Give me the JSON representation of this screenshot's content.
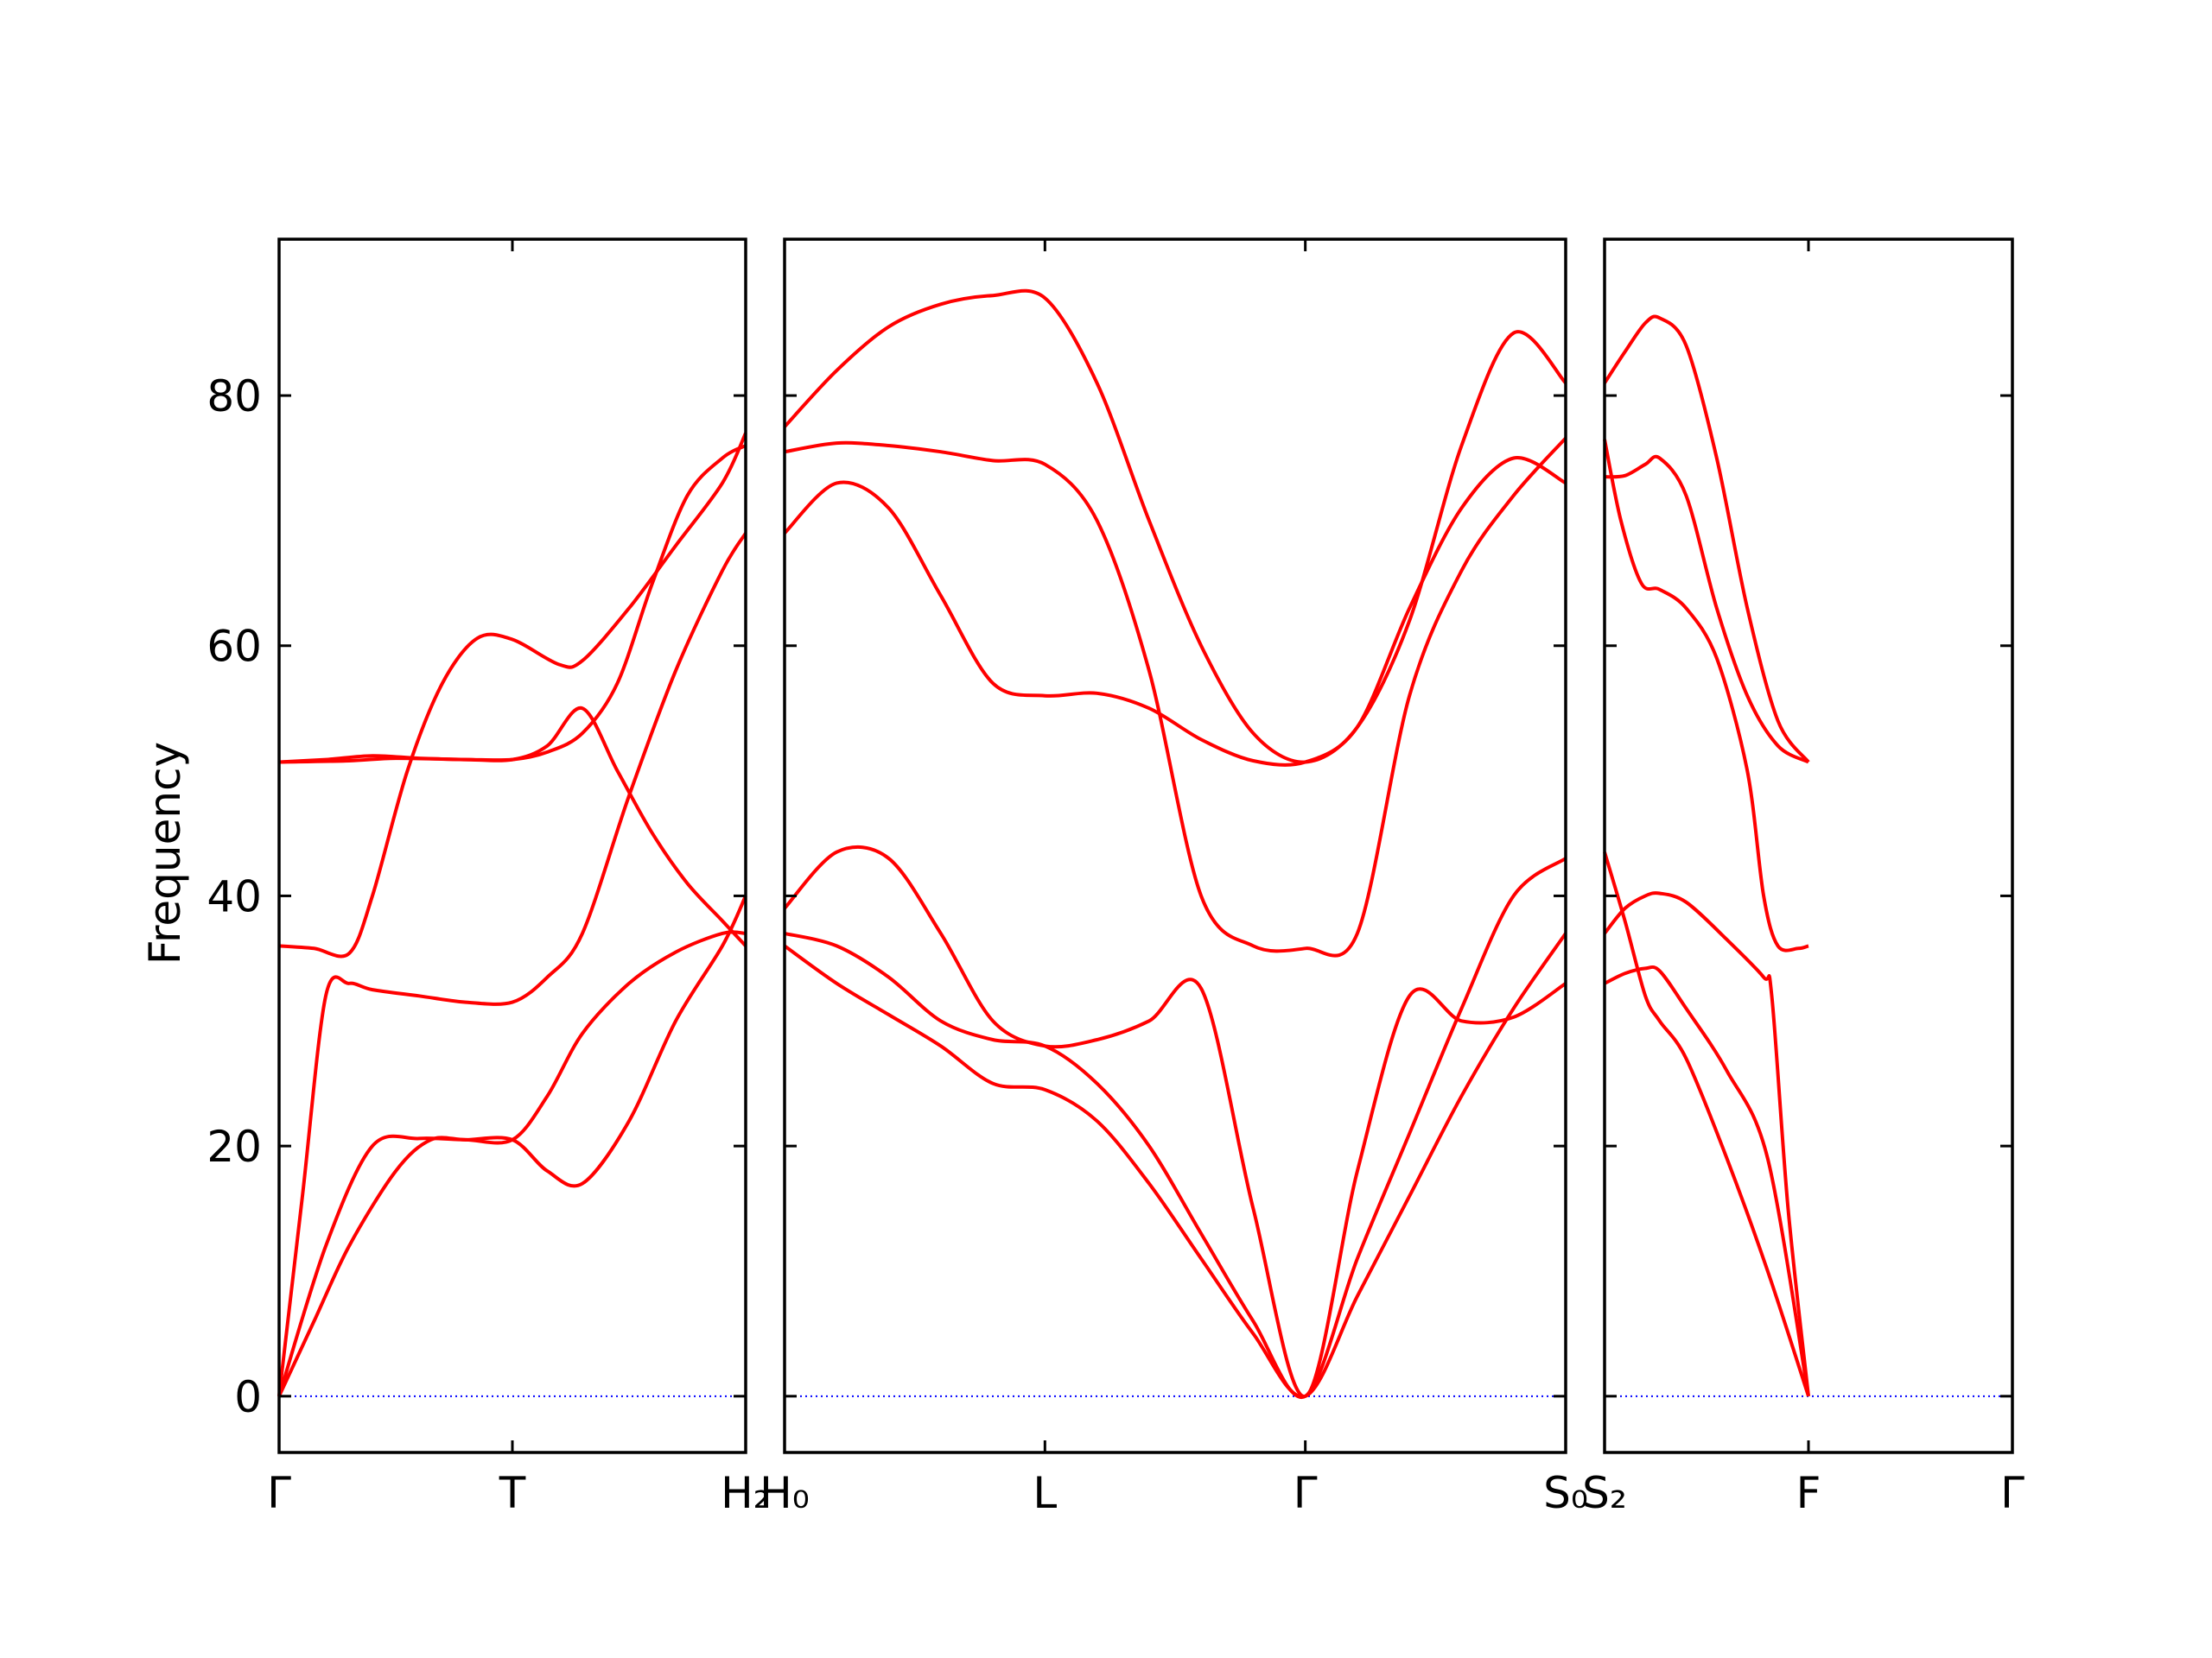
{
  "chart_data": {
    "type": "line",
    "ylabel": "Frequency",
    "ylim": [
      -4.5,
      92.5
    ],
    "yticks": [
      0,
      20,
      40,
      60,
      80
    ],
    "colors": {
      "bands": "#ff0000",
      "zero_line": "#0000ff",
      "frame": "#000000"
    },
    "zero_line_style": "dotted",
    "grid": false,
    "legend": "none",
    "panels": [
      {
        "segments": [
          "Γ-T",
          "T-H2"
        ],
        "labels": [
          "Γ",
          "T",
          "H₂"
        ],
        "bands": [
          {
            "x": [
              0,
              0.15,
              0.3,
              0.5,
              0.65,
              0.8,
              1.0,
              1.15,
              1.3,
              1.5,
              1.7,
              1.9,
              2.0
            ],
            "y": [
              0,
              6,
              12,
              18,
              20.5,
              20.5,
              20.5,
              18,
              17,
              22,
              30,
              36,
              40
            ]
          },
          {
            "x": [
              0,
              0.2,
              0.4,
              0.6,
              0.8,
              1.0,
              1.15,
              1.3,
              1.5,
              1.7,
              1.9,
              2.0
            ],
            "y": [
              0,
              12,
              20,
              20.6,
              20.5,
              20.5,
              24,
              29,
              33,
              35.5,
              37,
              37
            ]
          },
          {
            "x": [
              0,
              0.1,
              0.2,
              0.3,
              0.4,
              0.6,
              0.8,
              1.0,
              1.15,
              1.3,
              1.5,
              1.7,
              1.9,
              2.0
            ],
            "y": [
              0,
              16,
              32,
              33,
              32.5,
              32,
              31.5,
              31.5,
              33.5,
              37,
              48,
              58,
              66,
              69
            ]
          },
          {
            "x": [
              0,
              0.15,
              0.3,
              0.4,
              0.55,
              0.7,
              0.85,
              1.0,
              1.2,
              1.3,
              1.5,
              1.7,
              1.9,
              2.0
            ],
            "y": [
              36,
              35.8,
              35.4,
              40,
              50,
              57,
              60.6,
              60.5,
              58.5,
              58.8,
              63,
              68,
              73,
              77
            ]
          },
          {
            "x": [
              0,
              0.2,
              0.4,
              0.6,
              0.8,
              1.0,
              1.15,
              1.3,
              1.45,
              1.6,
              1.75,
              1.9,
              2.0
            ],
            "y": [
              50.7,
              50.9,
              51.2,
              51,
              50.9,
              50.9,
              52,
              55,
              50,
              45,
              41,
              38,
              36
            ]
          },
          {
            "x": [
              0,
              0.3,
              0.5,
              0.8,
              1.0,
              1.15,
              1.3,
              1.45,
              1.6,
              1.75,
              1.9,
              2.0
            ],
            "y": [
              50.7,
              50.8,
              51,
              50.9,
              50.9,
              51.5,
              53,
              57,
              65,
              72,
              75,
              76
            ]
          }
        ]
      },
      {
        "segments": [
          "H0-L",
          "L-Γ",
          "Γ-S0"
        ],
        "labels": [
          "H₀",
          "L",
          "Γ",
          "S₀"
        ],
        "bands": [
          {
            "x": [
              0,
              0.2,
              0.4,
              0.6,
              0.8,
              1.0,
              1.2,
              1.4,
              1.6,
              1.8,
              2.0,
              2.2,
              2.4,
              2.6,
              2.8,
              3.0
            ],
            "y": [
              36,
              33,
              30.5,
              28,
              25,
              24.5,
              22,
              17,
              11,
              5,
              0,
              8,
              16,
              24,
              31,
              37
            ]
          },
          {
            "x": [
              0,
              0.2,
              0.4,
              0.6,
              0.8,
              1.0,
              1.2,
              1.4,
              1.6,
              1.8,
              2.0,
              2.2,
              2.4,
              2.6,
              2.8,
              3.0
            ],
            "y": [
              37,
              36,
              33.5,
              30,
              28.5,
              28,
              25,
              20,
              13,
              6,
              0,
              11,
              21,
              31,
              40,
              43
            ]
          },
          {
            "x": [
              0,
              0.2,
              0.4,
              0.6,
              0.8,
              1.0,
              1.2,
              1.4,
              1.6,
              1.8,
              2.0,
              2.2,
              2.4,
              2.6,
              2.8,
              3.0
            ],
            "y": [
              39,
              43.5,
              43,
              37,
              30,
              28,
              28.5,
              30,
              32.6,
              15,
              0,
              18,
              32,
              30,
              30.3,
              33
            ]
          },
          {
            "x": [
              0,
              0.2,
              0.4,
              0.6,
              0.8,
              1.0,
              1.2,
              1.4,
              1.6,
              1.8,
              2.0,
              2.2,
              2.4,
              2.6,
              2.8,
              3.0
            ],
            "y": [
              69,
              73,
              71,
              64,
              57,
              56,
              56.2,
              55,
              52.5,
              50.8,
              50.7,
              53.5,
              63,
              71,
              75,
              73
            ]
          },
          {
            "x": [
              0,
              0.2,
              0.4,
              0.6,
              0.8,
              1.0,
              1.2,
              1.4,
              1.6,
              1.8,
              2.0,
              2.2,
              2.4,
              2.6,
              2.8,
              3.0
            ],
            "y": [
              75.5,
              76.2,
              76,
              75.5,
              74.8,
              74.5,
              70,
              58,
              40,
              36,
              35.8,
              37,
              56,
              66,
              72,
              76.6
            ]
          },
          {
            "x": [
              0,
              0.2,
              0.4,
              0.6,
              0.8,
              1.0,
              1.2,
              1.4,
              1.6,
              1.8,
              2.0,
              2.2,
              2.4,
              2.6,
              2.8,
              3.0
            ],
            "y": [
              77.5,
              82,
              85.5,
              87.3,
              88,
              87.8,
              81,
              70,
              60,
              53,
              50.7,
              53.5,
              62,
              76,
              85,
              81
            ]
          }
        ]
      },
      {
        "segments": [
          "S2-F",
          "F-Γ"
        ],
        "labels": [
          "S₂",
          "F",
          "Γ"
        ],
        "bands": [
          {
            "x": [
              0,
              0.1,
              0.2,
              0.27,
              0.4,
              0.6,
              0.8,
              1.0
            ],
            "y": [
              33,
              33.8,
              34.2,
              34,
              31,
              26,
              19,
              0
            ]
          },
          {
            "x": [
              0,
              0.1,
              0.2,
              0.27,
              0.4,
              0.6,
              0.8,
              1.0
            ],
            "y": [
              43.5,
              38,
              32,
              30,
              27,
              19,
              10,
              0
            ]
          },
          {
            "x": [
              0,
              0.1,
              0.2,
              0.27,
              0.4,
              0.6,
              0.78,
              0.82,
              0.9,
              1.0
            ],
            "y": [
              37,
              39,
              40,
              40.2,
              39.5,
              36.5,
              33.5,
              32,
              15,
              0
            ]
          },
          {
            "x": [
              0,
              0.08,
              0.18,
              0.27,
              0.4,
              0.55,
              0.7,
              0.78,
              0.85,
              0.95,
              1.0
            ],
            "y": [
              76.5,
              70,
              65,
              64.5,
              63,
              59,
              50,
              40,
              36,
              35.8,
              36
            ]
          },
          {
            "x": [
              0,
              0.1,
              0.2,
              0.27,
              0.4,
              0.55,
              0.7,
              0.85,
              1.0
            ],
            "y": [
              73.5,
              73.6,
              74.5,
              75,
              72,
              63,
              56,
              52,
              50.7
            ]
          },
          {
            "x": [
              0,
              0.1,
              0.2,
              0.27,
              0.4,
              0.55,
              0.7,
              0.85,
              1.0
            ],
            "y": [
              81,
              83.5,
              85.8,
              86.2,
              84,
              75,
              63,
              54,
              50.7
            ]
          }
        ]
      }
    ]
  }
}
